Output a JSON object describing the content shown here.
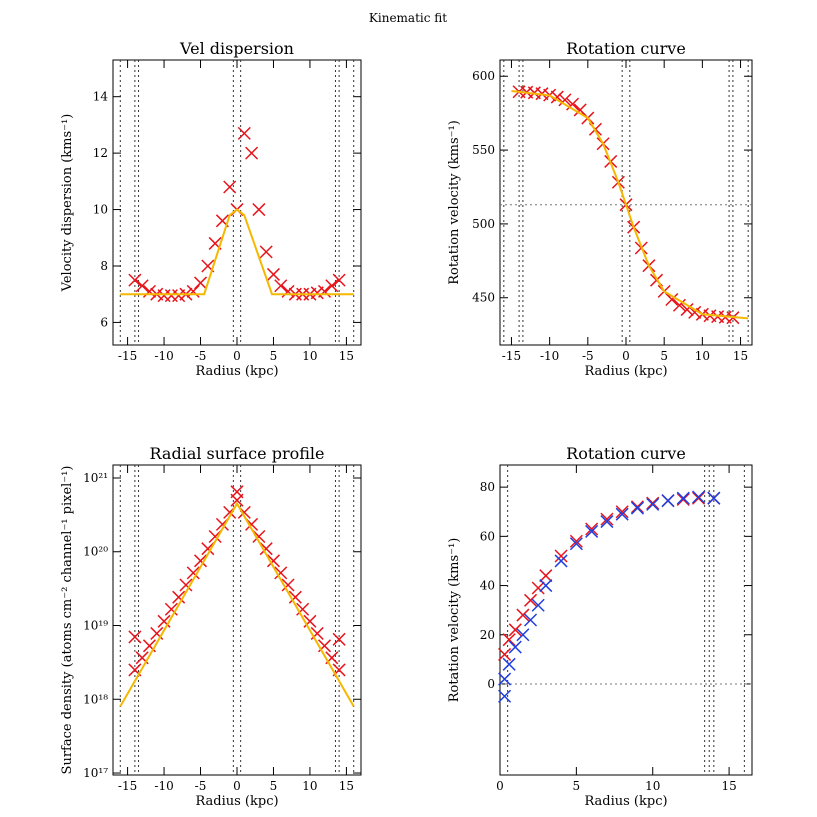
{
  "chart_data": [
    {
      "type": "scatter",
      "suptitle": "Kinematic fit",
      "title": "Vel dispersion",
      "xlabel": "Radius (kpc)",
      "ylabel": "Velocity dispersion (kms⁻¹)",
      "xlim": [
        -17,
        17
      ],
      "ylim": [
        5.2,
        15.3
      ],
      "xticks": [
        -15,
        -10,
        -5,
        0,
        5,
        10,
        15
      ],
      "yticks": [
        6,
        8,
        10,
        12,
        14
      ],
      "log": false,
      "vlines": [
        -16,
        -14,
        -13.5,
        -0.5,
        0.5,
        13.5,
        14,
        16
      ],
      "hlines": [],
      "series": [
        {
          "style": "x",
          "color": "#e8141b",
          "x": [
            -14,
            -13,
            -12,
            -11,
            -10,
            -9,
            -8,
            -7,
            -6,
            -5,
            -4,
            -3,
            -2,
            -1,
            0,
            1,
            2,
            3,
            4,
            5,
            6,
            7,
            8,
            9,
            10,
            11,
            12,
            13,
            14
          ],
          "values": [
            7.5,
            7.3,
            7.1,
            7.0,
            6.95,
            6.95,
            6.95,
            7.0,
            7.1,
            7.4,
            8.0,
            8.8,
            9.6,
            10.8,
            10.0,
            12.7,
            12.0,
            10.0,
            8.5,
            7.7,
            7.3,
            7.1,
            7.0,
            7.0,
            7.0,
            7.05,
            7.1,
            7.3,
            7.5
          ]
        },
        {
          "style": "line",
          "color": "#f5b800",
          "x": [
            -16,
            -4.5,
            -1,
            0,
            1,
            4.8,
            16
          ],
          "values": [
            7,
            7,
            9.8,
            10,
            9.8,
            7,
            7
          ]
        }
      ]
    },
    {
      "type": "scatter",
      "title": "Rotation curve",
      "xlabel": "Radius (kpc)",
      "ylabel": "Rotation velocity (kms⁻¹)",
      "xlim": [
        -16.5,
        16.5
      ],
      "ylim": [
        418,
        611
      ],
      "xticks": [
        -15,
        -10,
        -5,
        0,
        5,
        10,
        15
      ],
      "yticks": [
        450,
        500,
        550,
        600
      ],
      "log": false,
      "vlines": [
        -16,
        -14,
        -13.5,
        -0.5,
        0.5,
        13.5,
        14,
        16
      ],
      "hlines": [
        513
      ],
      "series": [
        {
          "style": "x",
          "color": "#e8141b",
          "x": [
            -14,
            -13,
            -12,
            -11,
            -10,
            -9,
            -8,
            -7,
            -6,
            -5,
            -4,
            -3,
            -2,
            -1,
            0,
            1,
            2,
            3,
            4,
            5,
            6,
            7,
            8,
            9,
            10,
            11,
            12,
            13,
            14
          ],
          "values": [
            589.5,
            589.2,
            588.8,
            588.2,
            587.2,
            585.9,
            584,
            581.1,
            577.2,
            571.7,
            564.1,
            554.3,
            542.3,
            528.2,
            513,
            497.8,
            483.7,
            471.7,
            461.9,
            454.3,
            448.8,
            444.9,
            442,
            440.1,
            438.8,
            437.8,
            437.2,
            436.8,
            436.5
          ]
        },
        {
          "style": "line",
          "color": "#f5b800",
          "x": [
            -15,
            -10,
            -5,
            -3,
            -1,
            0,
            1,
            3,
            5,
            10,
            16
          ],
          "values": [
            590,
            587,
            571.7,
            554.3,
            528.2,
            513,
            497.8,
            471.7,
            454.3,
            438.8,
            436
          ]
        }
      ]
    },
    {
      "type": "scatter",
      "title": "Radial surface profile",
      "xlabel": "Radius (kpc)",
      "ylabel": "Surface density (atoms cm⁻² channel⁻¹ pixel⁻¹)",
      "xlim": [
        -17,
        17
      ],
      "ylim": [
        9.4e+16,
        1.5e+21
      ],
      "xticks": [
        -15,
        -10,
        -5,
        0,
        5,
        10,
        15
      ],
      "yticks": [
        {
          "value": 1e+17,
          "label": "10¹⁷"
        },
        {
          "value": 1e+18,
          "label": "10¹⁸"
        },
        {
          "value": 1e+19,
          "label": "10¹⁹"
        },
        {
          "value": 1e+20,
          "label": "10²⁰"
        },
        {
          "value": 1e+21,
          "label": "10²¹"
        }
      ],
      "log": true,
      "vlines": [
        -16,
        -14,
        -13.5,
        -0.5,
        0.5,
        13.5,
        14,
        16
      ],
      "hlines": [],
      "series": [
        {
          "style": "x",
          "color": "#e8141b",
          "x": [
            -14,
            -13,
            -12,
            -11,
            -10,
            -9,
            -8,
            -7,
            -6,
            -5,
            -4,
            -3,
            -2,
            -1,
            0,
            1,
            2,
            3,
            4,
            5,
            6,
            7,
            8,
            9,
            10,
            11,
            12,
            13,
            14,
            -14,
            0,
            14
          ],
          "values": [
            2.5e+18,
            3.65e+18,
            5.3e+18,
            7.8e+18,
            1.14e+19,
            1.66e+19,
            2.42e+19,
            3.54e+19,
            5.17e+19,
            7.54e+19,
            1.1e+20,
            1.61e+20,
            2.35e+20,
            3.42e+20,
            5e+20,
            3.42e+20,
            2.35e+20,
            1.61e+20,
            1.1e+20,
            7.54e+19,
            5.17e+19,
            3.54e+19,
            2.42e+19,
            1.66e+19,
            1.14e+19,
            7.8e+18,
            5.3e+18,
            3.65e+18,
            2.5e+18,
            7e+18,
            6.5e+20,
            6.5e+18
          ]
        },
        {
          "style": "line",
          "color": "#f5b800",
          "x": [
            -16,
            0,
            16
          ],
          "values": [
            8e+17,
            4.5e+20,
            8e+17
          ]
        }
      ]
    },
    {
      "type": "scatter",
      "title": "Rotation curve",
      "xlabel": "Radius (kpc)",
      "ylabel": "Rotation velocity (kms⁻¹)",
      "xlim": [
        0,
        16.5
      ],
      "ylim": [
        -37,
        89
      ],
      "xticks": [
        0,
        5,
        10,
        15
      ],
      "yticks": [
        0,
        20,
        40,
        60,
        80
      ],
      "log": false,
      "vlines": [
        0.5,
        13.4,
        13.7,
        14,
        16
      ],
      "hlines": [
        0
      ],
      "series": [
        {
          "style": "x",
          "color": "#e8141b",
          "x": [
            0.3,
            0.6,
            1,
            1.5,
            2,
            2.5,
            3,
            4,
            5,
            6,
            7,
            8,
            9,
            10,
            11,
            12,
            13,
            14
          ],
          "values": [
            12,
            18,
            22,
            28,
            34,
            39,
            44,
            52,
            58,
            63,
            67,
            70,
            72,
            73.5,
            74.5,
            75,
            75.5,
            75.5
          ]
        },
        {
          "style": "x",
          "color": "#1f3fe0",
          "x": [
            0.3,
            0.3,
            0.6,
            1,
            1.5,
            2,
            2.5,
            3,
            4,
            5,
            6,
            7,
            8,
            9,
            10,
            11,
            12,
            13,
            14
          ],
          "values": [
            -5,
            2,
            8,
            15,
            20,
            26,
            32,
            40,
            50,
            57,
            62,
            66,
            69,
            71.5,
            73,
            74.5,
            75.5,
            76,
            75.5
          ]
        }
      ]
    }
  ]
}
